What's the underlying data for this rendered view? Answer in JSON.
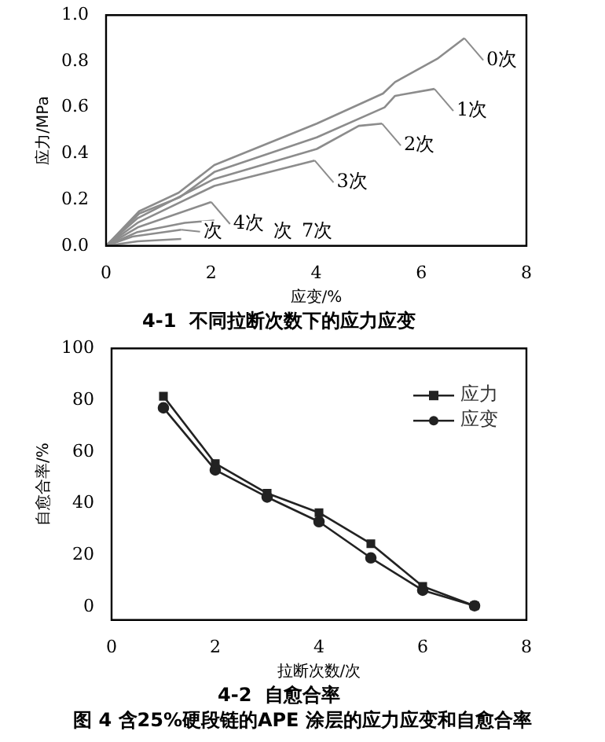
{
  "chart_data": [
    {
      "type": "line",
      "title": "4-1  不同拉断次数下的应力应变",
      "xlabel": "应变/%",
      "ylabel": "应力/MPa",
      "xlim": [
        0,
        8
      ],
      "xticks": [
        0,
        2,
        4,
        6,
        8
      ],
      "ylim": [
        0,
        1.0
      ],
      "yticks": [
        {
          "value": 0,
          "label": "0.0"
        },
        {
          "value": 0.2,
          "label": "0.2"
        },
        {
          "value": 0.4,
          "label": "0.4"
        },
        {
          "value": 0.6,
          "label": "0.6"
        },
        {
          "value": 0.8,
          "label": "0.8"
        },
        {
          "value": 1.0,
          "label": "1.0"
        }
      ],
      "grid": false,
      "legend": "right",
      "marker": "none",
      "series": [
        {
          "name": "0次",
          "color": "#8c8c8c",
          "x": [
            0,
            0.63,
            1.38,
            2.06,
            4.01,
            5.27,
            5.5,
            6.3,
            6.82
          ],
          "values": [
            0,
            0.15,
            0.23,
            0.35,
            0.53,
            0.66,
            0.71,
            0.81,
            0.9
          ]
        },
        {
          "name": "1次",
          "color": "#8c8c8c",
          "x": [
            0,
            0.63,
            1.4,
            2.06,
            4.01,
            5.3,
            5.5,
            6.25
          ],
          "values": [
            0,
            0.14,
            0.21,
            0.32,
            0.47,
            0.6,
            0.65,
            0.68
          ]
        },
        {
          "name": "2次",
          "color": "#8c8c8c",
          "x": [
            0,
            0.6,
            2.06,
            4.01,
            4.81,
            5.25
          ],
          "values": [
            0,
            0.12,
            0.29,
            0.42,
            0.52,
            0.53
          ]
        },
        {
          "name": "3次",
          "color": "#8c8c8c",
          "x": [
            0,
            0.6,
            2.06,
            3.97
          ],
          "values": [
            0,
            0.1,
            0.26,
            0.37
          ]
        },
        {
          "name": "4次",
          "color": "#8c8c8c",
          "x": [
            0,
            0.6,
            2.0
          ],
          "values": [
            0,
            0.08,
            0.19
          ]
        },
        {
          "name": "次",
          "color": "#8c8c8c",
          "x": [
            0,
            0.6,
            1.5,
            2.06
          ],
          "values": [
            0,
            0.06,
            0.1,
            0.11
          ]
        },
        {
          "name": "次",
          "color": "#8c8c8c",
          "x": [
            0,
            0.5,
            1.43
          ],
          "values": [
            0,
            0.04,
            0.07
          ]
        },
        {
          "name": "7次",
          "color": "#8c8c8c",
          "x": [
            0,
            0.6,
            1.43
          ],
          "values": [
            0,
            0.02,
            0.03
          ]
        }
      ]
    },
    {
      "type": "line",
      "title": "4-2  自愈合率",
      "xlabel": "拉断次数/次",
      "ylabel": "自愈合率/%",
      "xlim": [
        0,
        8
      ],
      "xticks": [
        0,
        2,
        4,
        6,
        8
      ],
      "ylim": [
        -5,
        100
      ],
      "yticks": [
        0,
        20,
        40,
        60,
        80,
        100
      ],
      "grid": false,
      "legend": "top right",
      "annotations": [
        "图 4  含25%硬段链的APE  涂层的应力应变和自愈合率"
      ],
      "series": [
        {
          "name": "应力",
          "color": "#222222",
          "marker": "square",
          "x": [
            1,
            2,
            3,
            4,
            5,
            6,
            7
          ],
          "values": [
            81.5,
            55.5,
            44,
            36.5,
            24.5,
            8,
            0.5
          ]
        },
        {
          "name": "应变",
          "color": "#222222",
          "marker": "circle",
          "x": [
            1,
            2,
            3,
            4,
            5,
            6,
            7
          ],
          "values": [
            77,
            53,
            42.5,
            33,
            19,
            6.5,
            0.5
          ]
        }
      ]
    }
  ]
}
